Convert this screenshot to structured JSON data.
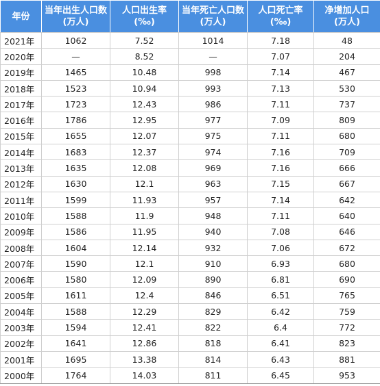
{
  "table": {
    "headers": [
      {
        "line1": "年份",
        "line2": ""
      },
      {
        "line1": "当年出生人口数",
        "line2": "(万人)"
      },
      {
        "line1": "人口出生率",
        "line2": "(‰)"
      },
      {
        "line1": "当年死亡人口数",
        "line2": "(万人)"
      },
      {
        "line1": "人口死亡率",
        "line2": "(‰)"
      },
      {
        "line1": "净增加人口",
        "line2": "(万人)"
      }
    ],
    "rows": [
      [
        "2021年",
        "1062",
        "7.52",
        "1014",
        "7.18",
        "48"
      ],
      [
        "2020年",
        "—",
        "8.52",
        "—",
        "7.07",
        "204"
      ],
      [
        "2019年",
        "1465",
        "10.48",
        "998",
        "7.14",
        "467"
      ],
      [
        "2018年",
        "1523",
        "10.94",
        "993",
        "7.13",
        "530"
      ],
      [
        "2017年",
        "1723",
        "12.43",
        "986",
        "7.11",
        "737"
      ],
      [
        "2016年",
        "1786",
        "12.95",
        "977",
        "7.09",
        "809"
      ],
      [
        "2015年",
        "1655",
        "12.07",
        "975",
        "7.11",
        "680"
      ],
      [
        "2014年",
        "1683",
        "12.37",
        "974",
        "7.16",
        "709"
      ],
      [
        "2013年",
        "1635",
        "12.08",
        "969",
        "7.16",
        "666"
      ],
      [
        "2012年",
        "1630",
        "12.1",
        "963",
        "7.15",
        "667"
      ],
      [
        "2011年",
        "1599",
        "11.93",
        "957",
        "7.14",
        "642"
      ],
      [
        "2010年",
        "1588",
        "11.9",
        "948",
        "7.11",
        "640"
      ],
      [
        "2009年",
        "1586",
        "11.95",
        "940",
        "7.08",
        "646"
      ],
      [
        "2008年",
        "1604",
        "12.14",
        "932",
        "7.06",
        "672"
      ],
      [
        "2007年",
        "1590",
        "12.1",
        "910",
        "6.93",
        "680"
      ],
      [
        "2006年",
        "1580",
        "12.09",
        "890",
        "6.81",
        "690"
      ],
      [
        "2005年",
        "1611",
        "12.4",
        "846",
        "6.51",
        "765"
      ],
      [
        "2004年",
        "1588",
        "12.29",
        "829",
        "6.42",
        "759"
      ],
      [
        "2003年",
        "1594",
        "12.41",
        "822",
        "6.4",
        "772"
      ],
      [
        "2002年",
        "1641",
        "12.86",
        "818",
        "6.41",
        "823"
      ],
      [
        "2001年",
        "1695",
        "13.38",
        "814",
        "6.43",
        "881"
      ],
      [
        "2000年",
        "1764",
        "14.03",
        "811",
        "6.45",
        "953"
      ]
    ]
  },
  "colors": {
    "header_bg": "#4a8fe0",
    "header_text": "#ffffff",
    "grid": "#cfcfcf"
  }
}
